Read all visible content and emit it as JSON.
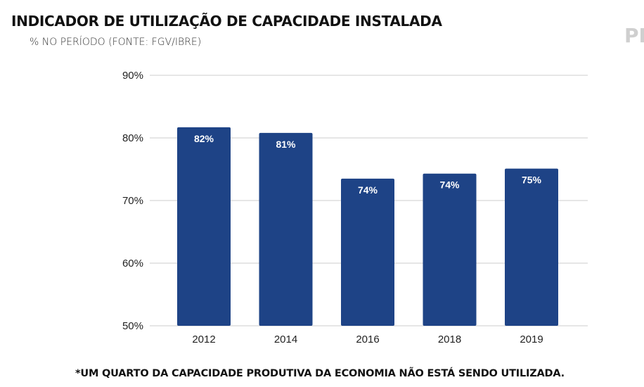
{
  "header": {
    "title": "INDICADOR DE UTILIZAÇÃO DE CAPACIDADE INSTALADA",
    "subtitle": "% NO PERÍODO (FONTE: FGV/IBRE)",
    "brand_fragment": "PI"
  },
  "footnote": "*UM QUARTO DA CAPACIDADE PRODUTIVA DA ECONOMIA NÃO ESTÁ SENDO UTILIZADA.",
  "colors": {
    "bar": "#1e4386",
    "grid": "#cccccc",
    "data_label": "#ffffff"
  },
  "chart_data": {
    "type": "bar",
    "title": "INDICADOR DE UTILIZAÇÃO DE CAPACIDADE INSTALADA",
    "subtitle": "% NO PERÍODO (FONTE: FGV/IBRE)",
    "xlabel": "",
    "ylabel": "",
    "categories": [
      "2012",
      "2014",
      "2016",
      "2018",
      "2019"
    ],
    "values": [
      81.7,
      80.8,
      73.5,
      74.3,
      75.1
    ],
    "data_labels": [
      "82%",
      "81%",
      "74%",
      "74%",
      "75%"
    ],
    "ylim": [
      50,
      90
    ],
    "yticks": [
      50,
      60,
      70,
      80,
      90
    ],
    "ytick_labels": [
      "50%",
      "60%",
      "70%",
      "80%",
      "90%"
    ],
    "grid": true,
    "legend": "none"
  }
}
